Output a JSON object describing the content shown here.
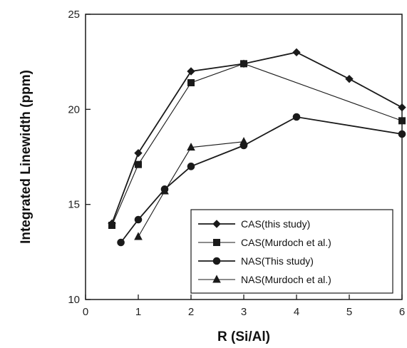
{
  "chart_data": {
    "type": "line",
    "xlabel": "R (Si/Al)",
    "ylabel": "Integrated Linewidth (ppm)",
    "xlim": [
      0,
      6
    ],
    "ylim": [
      10,
      25
    ],
    "x_ticks": [
      0,
      1,
      2,
      3,
      4,
      5,
      6
    ],
    "y_ticks": [
      10,
      15,
      20,
      25
    ],
    "grid": false,
    "legend_position": "bottom-right",
    "series": [
      {
        "name": "CAS(this study)",
        "marker": "diamond",
        "color": "#1a1a1a",
        "x": [
          0.5,
          1,
          2,
          3,
          4,
          5,
          6
        ],
        "y": [
          14.0,
          17.7,
          22.0,
          22.4,
          23.0,
          21.6,
          20.1
        ]
      },
      {
        "name": "CAS(Murdoch et al.)",
        "marker": "square",
        "color": "#1a1a1a",
        "x": [
          0.5,
          1,
          2,
          3,
          6
        ],
        "y": [
          13.9,
          17.1,
          21.4,
          22.4,
          19.4
        ]
      },
      {
        "name": "NAS(This study)",
        "marker": "circle",
        "color": "#1a1a1a",
        "x": [
          0.67,
          1,
          1.5,
          2,
          3,
          4,
          6
        ],
        "y": [
          13.0,
          14.2,
          15.8,
          17.0,
          18.1,
          19.6,
          18.7
        ]
      },
      {
        "name": "NAS(Murdoch et al.)",
        "marker": "triangle",
        "color": "#1a1a1a",
        "x": [
          1,
          1.5,
          2,
          3
        ],
        "y": [
          13.3,
          15.7,
          18.0,
          18.3
        ]
      }
    ]
  }
}
